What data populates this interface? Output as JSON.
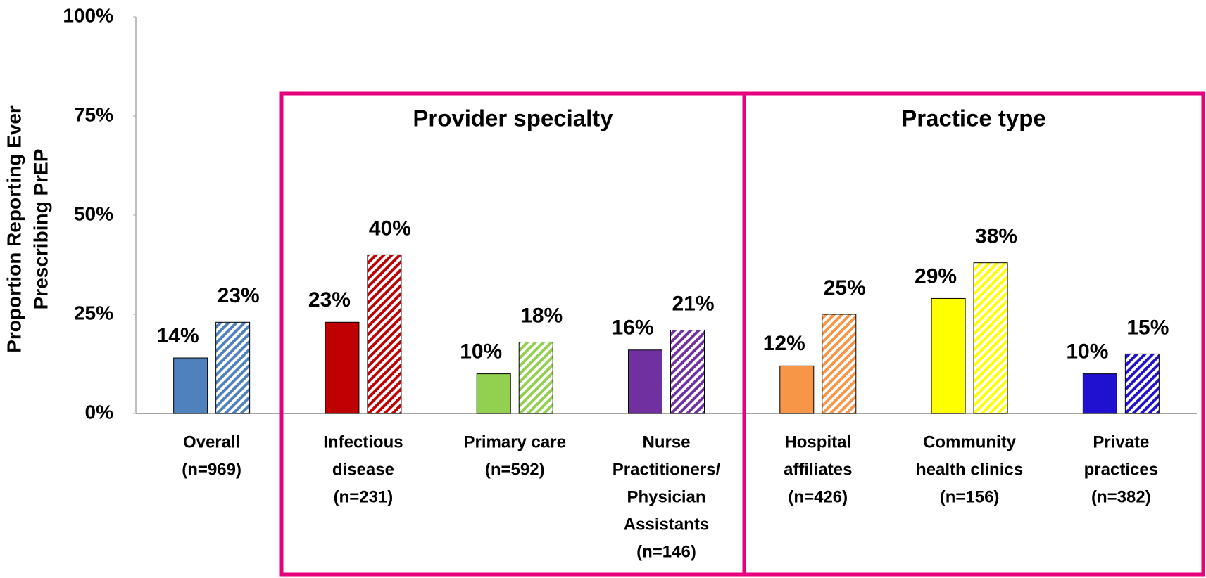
{
  "chart_data": {
    "type": "bar",
    "y_label": [
      "Proportion  Reporting Ever",
      "Prescribing  PrEP"
    ],
    "categories": [
      [
        "Overall",
        "(n=969)"
      ],
      [
        "Infectious",
        "disease",
        "(n=231)"
      ],
      [
        "Primary care",
        "(n=592)"
      ],
      [
        "Nurse",
        "Practitioners/",
        "Physician",
        "Assistants",
        "(n=146)"
      ],
      [
        "Hospital",
        "affiliates",
        "(n=426)"
      ],
      [
        "Community",
        "health clinics",
        "(n=156)"
      ],
      [
        "Private",
        "practices",
        "(n=382)"
      ]
    ],
    "colors": [
      "#4f81bd",
      "#c00000",
      "#92d050",
      "#7030a0",
      "#f79646",
      "#ffff00",
      "#2010d0"
    ],
    "series": [
      {
        "pattern": "solid",
        "values": [
          14,
          23,
          10,
          16,
          12,
          29,
          10
        ],
        "value_labels": [
          "14%",
          "23%",
          "10%",
          "16%",
          "12%",
          "29%",
          "10%"
        ]
      },
      {
        "pattern": "hatched",
        "values": [
          23,
          40,
          18,
          21,
          25,
          38,
          15
        ],
        "value_labels": [
          "23%",
          "40%",
          "18%",
          "21%",
          "25%",
          "38%",
          "15%"
        ]
      }
    ],
    "annotations": [
      "Provider specialty",
      "Practice type"
    ],
    "ylim": [
      0,
      100
    ],
    "yticks": [
      {
        "value": 0,
        "label": "0%"
      },
      {
        "value": 25,
        "label": "25%"
      },
      {
        "value": 50,
        "label": "50%"
      },
      {
        "value": 75,
        "label": "75%"
      },
      {
        "value": 100,
        "label": "100%"
      }
    ]
  }
}
